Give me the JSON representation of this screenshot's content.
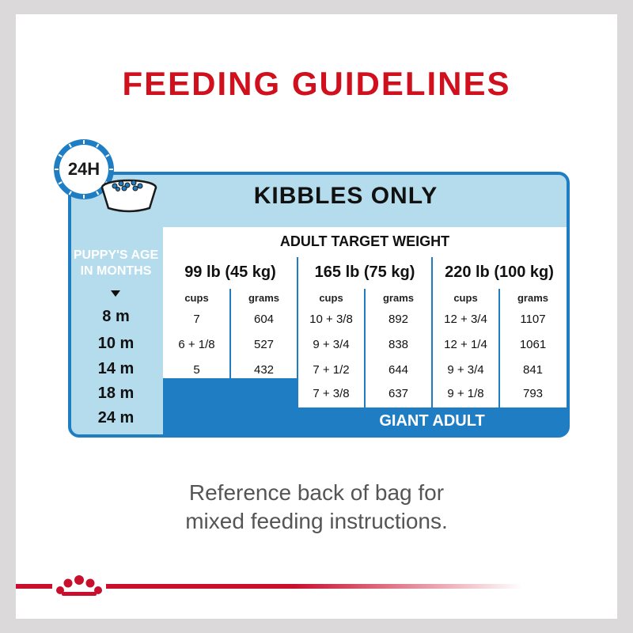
{
  "page": {
    "title": "FEEDING GUIDELINES",
    "note_line1": "Reference back of bag for",
    "note_line2": "mixed feeding instructions.",
    "accent_red": "#d0101d",
    "accent_blue": "#1f7ec3",
    "light_blue": "#b5dced"
  },
  "card": {
    "clock_label": "24H",
    "clock_icon": "clock-icon",
    "bowl_icon": "kibble-bowl-icon",
    "header": "KIBBLES ONLY",
    "target_label": "ADULT TARGET WEIGHT",
    "age_heading_line1": "PUPPY'S AGE",
    "age_heading_line2": "IN MONTHS",
    "ages": [
      "8 m",
      "10 m",
      "14 m",
      "18 m",
      "24 m"
    ],
    "weights": [
      "99 lb (45 kg)",
      "165 lb (75 kg)",
      "220 lb (100 kg)"
    ],
    "unit_cups": "cups",
    "unit_grams": "grams",
    "rows": [
      [
        "7",
        "604",
        "10 + 3/8",
        "892",
        "12 + 3/4",
        "1107"
      ],
      [
        "6 + 1/8",
        "527",
        "9 + 3/4",
        "838",
        "12 + 1/4",
        "1061"
      ],
      [
        "5",
        "432",
        "7 + 1/2",
        "644",
        "9 + 3/4",
        "841"
      ],
      [
        "",
        "",
        "7 + 3/8",
        "637",
        "9 + 1/8",
        "793"
      ]
    ],
    "giant_label": "GIANT ADULT"
  },
  "brand": {
    "logo_icon": "royal-canin-crown-logo"
  }
}
